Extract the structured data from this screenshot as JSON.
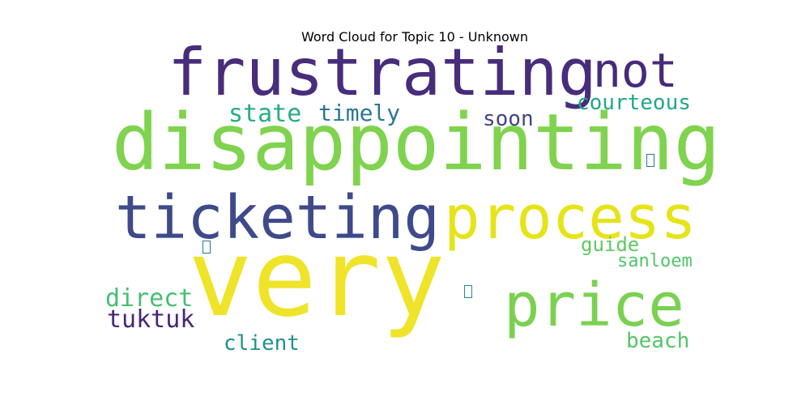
{
  "chart_data": {
    "type": "wordcloud",
    "title": "Word Cloud for Topic 10 - Unknown",
    "words": [
      {
        "text": "very",
        "weight": 1.0,
        "color": "#efe42a"
      },
      {
        "text": "disappointing",
        "weight": 0.93,
        "color": "#7fd34e"
      },
      {
        "text": "frustrating",
        "weight": 0.83,
        "color": "#472d7b"
      },
      {
        "text": "ticketing",
        "weight": 0.78,
        "color": "#3e4a89"
      },
      {
        "text": "process",
        "weight": 0.78,
        "color": "#e6e419"
      },
      {
        "text": "price",
        "weight": 0.77,
        "color": "#7ad151"
      },
      {
        "text": "not",
        "weight": 0.62,
        "color": "#472a7a"
      },
      {
        "text": "state",
        "weight": 0.32,
        "color": "#26ad81"
      },
      {
        "text": "timely",
        "weight": 0.3,
        "color": "#2a788e"
      },
      {
        "text": "courteous",
        "weight": 0.28,
        "color": "#22a884"
      },
      {
        "text": "soon",
        "weight": 0.28,
        "color": "#414487"
      },
      {
        "text": "direct",
        "weight": 0.33,
        "color": "#44bf70"
      },
      {
        "text": "tuktuk",
        "weight": 0.33,
        "color": "#482677"
      },
      {
        "text": "guide",
        "weight": 0.27,
        "color": "#5ec962"
      },
      {
        "text": "sanloem",
        "weight": 0.23,
        "color": "#52c569"
      },
      {
        "text": "client",
        "weight": 0.28,
        "color": "#21918c"
      },
      {
        "text": "beach",
        "weight": 0.3,
        "color": "#54c568"
      }
    ],
    "missing_glyphs": [
      {
        "color": "#2a788e"
      },
      {
        "color": "#2a788e"
      },
      {
        "color": "#21918c"
      }
    ]
  }
}
